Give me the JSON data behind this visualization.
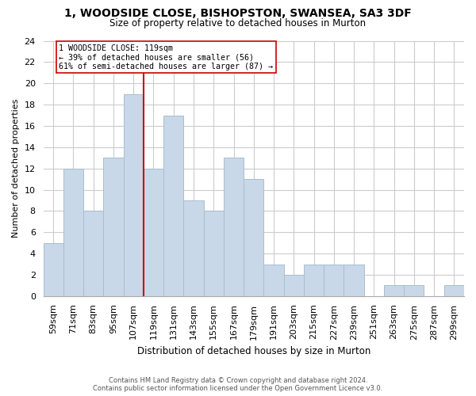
{
  "title_line1": "1, WOODSIDE CLOSE, BISHOPSTON, SWANSEA, SA3 3DF",
  "title_line2": "Size of property relative to detached houses in Murton",
  "xlabel": "Distribution of detached houses by size in Murton",
  "ylabel": "Number of detached properties",
  "bar_labels": [
    "59sqm",
    "71sqm",
    "83sqm",
    "95sqm",
    "107sqm",
    "119sqm",
    "131sqm",
    "143sqm",
    "155sqm",
    "167sqm",
    "179sqm",
    "191sqm",
    "203sqm",
    "215sqm",
    "227sqm",
    "239sqm",
    "251sqm",
    "263sqm",
    "275sqm",
    "287sqm",
    "299sqm"
  ],
  "bar_values": [
    5,
    12,
    8,
    13,
    19,
    12,
    17,
    9,
    8,
    13,
    11,
    3,
    2,
    3,
    3,
    3,
    0,
    1,
    1,
    0,
    1
  ],
  "bar_color": "#c8d8e8",
  "bar_edge_color": "#a8bece",
  "vline_color": "#cc0000",
  "annotation_text": "1 WOODSIDE CLOSE: 119sqm\n← 39% of detached houses are smaller (56)\n61% of semi-detached houses are larger (87) →",
  "ylim": [
    0,
    24
  ],
  "yticks": [
    0,
    2,
    4,
    6,
    8,
    10,
    12,
    14,
    16,
    18,
    20,
    22,
    24
  ],
  "background_color": "#ffffff",
  "grid_color": "#cccccc",
  "footer_line1": "Contains HM Land Registry data © Crown copyright and database right 2024.",
  "footer_line2": "Contains public sector information licensed under the Open Government Licence v3.0."
}
